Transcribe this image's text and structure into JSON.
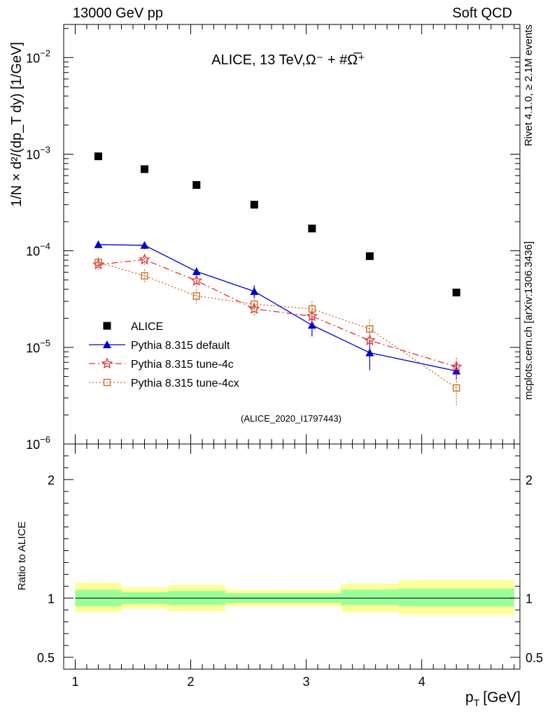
{
  "header": {
    "left": "13000 GeV pp",
    "right": "Soft QCD"
  },
  "side_labels": {
    "rivet": "Rivet 4.1.0, ≥ 2.1M events",
    "mcplots": "mcplots.cern.ch [arXiv:1306.3436]"
  },
  "chart_data": {
    "type": "scatter",
    "title": "ALICE, 13 TeV,Ω⁻ + #Ω̅⁺",
    "analysis_id": "(ALICE_2020_I1797443)",
    "xlabel": "p_T [GeV]",
    "xlabel_main": "p",
    "xlabel_sub": "T",
    "xlabel_unit": "[GeV]",
    "ylabel": "1/N × d²/(dp_T dy) [1/GeV]",
    "xlim": [
      0.9,
      4.85
    ],
    "ylim": [
      1e-06,
      0.022
    ],
    "yscale": "log",
    "x_ticks": [
      "1",
      "2",
      "3",
      "4"
    ],
    "y_ticks": [
      {
        "base": "10",
        "exp": "−6"
      },
      {
        "base": "10",
        "exp": "−5"
      },
      {
        "base": "10",
        "exp": "−4"
      },
      {
        "base": "10",
        "exp": "−3"
      },
      {
        "base": "10",
        "exp": "−2"
      }
    ],
    "bins": [
      [
        1.0,
        1.4
      ],
      [
        1.4,
        1.8
      ],
      [
        1.8,
        2.3
      ],
      [
        2.3,
        2.8
      ],
      [
        2.8,
        3.3
      ],
      [
        3.3,
        3.8
      ],
      [
        3.8,
        4.8
      ]
    ],
    "series": [
      {
        "name": "ALICE",
        "color": "#000000",
        "x": [
          1.2,
          1.6,
          2.05,
          2.55,
          3.05,
          3.55,
          4.3
        ],
        "y": [
          0.00095,
          0.0007,
          0.00048,
          0.0003,
          0.00017,
          8.8e-05,
          3.7e-05
        ],
        "err": [
          0,
          0,
          0,
          0,
          0,
          0,
          0
        ]
      },
      {
        "name": "Pythia 8.315 default",
        "color": "#0000cc",
        "x": [
          1.2,
          1.6,
          2.05,
          2.55,
          3.05,
          3.55,
          4.3
        ],
        "y": [
          0.000116,
          0.000114,
          6.1e-05,
          3.8e-05,
          1.7e-05,
          8.8e-06,
          5.7e-06
        ],
        "err": [
          1e-05,
          1e-05,
          6e-06,
          6e-06,
          4e-06,
          3e-06,
          1e-06
        ]
      },
      {
        "name": "Pythia 8.315 tune-4c",
        "color": "#e03030",
        "x": [
          1.2,
          1.6,
          2.05,
          2.55,
          3.05,
          3.55,
          4.3
        ],
        "y": [
          7.2e-05,
          8.1e-05,
          4.9e-05,
          2.5e-05,
          2.1e-05,
          1.18e-05,
          6.3e-06
        ],
        "err": [
          8e-06,
          9e-06,
          7e-06,
          4e-06,
          4e-06,
          2e-06,
          1.5e-06
        ]
      },
      {
        "name": "Pythia 8.315 tune-4cx",
        "color": "#c86420",
        "x": [
          1.2,
          1.6,
          2.05,
          2.55,
          3.05,
          3.55,
          4.3
        ],
        "y": [
          7.6e-05,
          5.5e-05,
          3.4e-05,
          2.8e-05,
          2.5e-05,
          1.55e-05,
          3.8e-06
        ],
        "err": [
          1e-05,
          9e-06,
          6e-06,
          5e-06,
          5e-06,
          4e-06,
          1.3e-06
        ]
      }
    ],
    "ratio": {
      "ylabel": "Ratio to ALICE",
      "ylim": [
        0.4,
        2.3
      ],
      "y_ticks": [
        "0.5",
        "1",
        "2"
      ],
      "band_inner": [
        [
          0.93,
          1.07
        ],
        [
          0.95,
          1.05
        ],
        [
          0.94,
          1.06
        ],
        [
          0.96,
          1.04
        ],
        [
          0.96,
          1.04
        ],
        [
          0.94,
          1.07
        ],
        [
          0.93,
          1.08
        ]
      ],
      "band_outer": [
        [
          0.88,
          1.13
        ],
        [
          0.91,
          1.09
        ],
        [
          0.89,
          1.11
        ],
        [
          0.93,
          1.07
        ],
        [
          0.93,
          1.07
        ],
        [
          0.88,
          1.12
        ],
        [
          0.86,
          1.15
        ]
      ],
      "inner_color": "#99ff99",
      "outer_color": "#ffff99"
    }
  }
}
